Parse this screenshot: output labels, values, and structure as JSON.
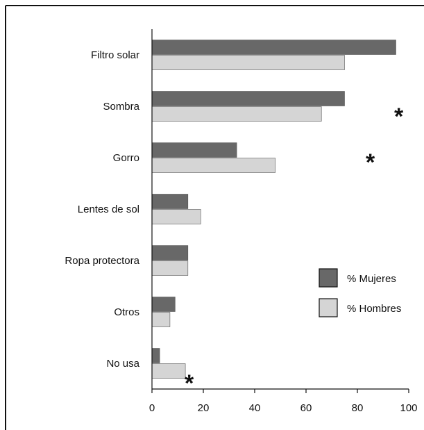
{
  "chart_data": {
    "type": "bar",
    "orientation": "horizontal",
    "categories": [
      "Filtro solar",
      "Sombra",
      "Gorro",
      "Lentes de sol",
      "Ropa protectora",
      "Otros",
      "No usa"
    ],
    "series": [
      {
        "name": "% Mujeres",
        "values": [
          95,
          75,
          33,
          14,
          14,
          9,
          3
        ]
      },
      {
        "name": "% Hombres",
        "values": [
          75,
          66,
          48,
          19,
          14,
          7,
          13
        ]
      }
    ],
    "colors": [
      "#686868",
      "#d5d5d5"
    ],
    "xlim": [
      0,
      100
    ],
    "xticks": [
      "0",
      "20",
      "40",
      "60",
      "80",
      "100"
    ],
    "grid": false,
    "legend_position": "right",
    "annotations": [
      "*",
      "*",
      "*"
    ]
  }
}
